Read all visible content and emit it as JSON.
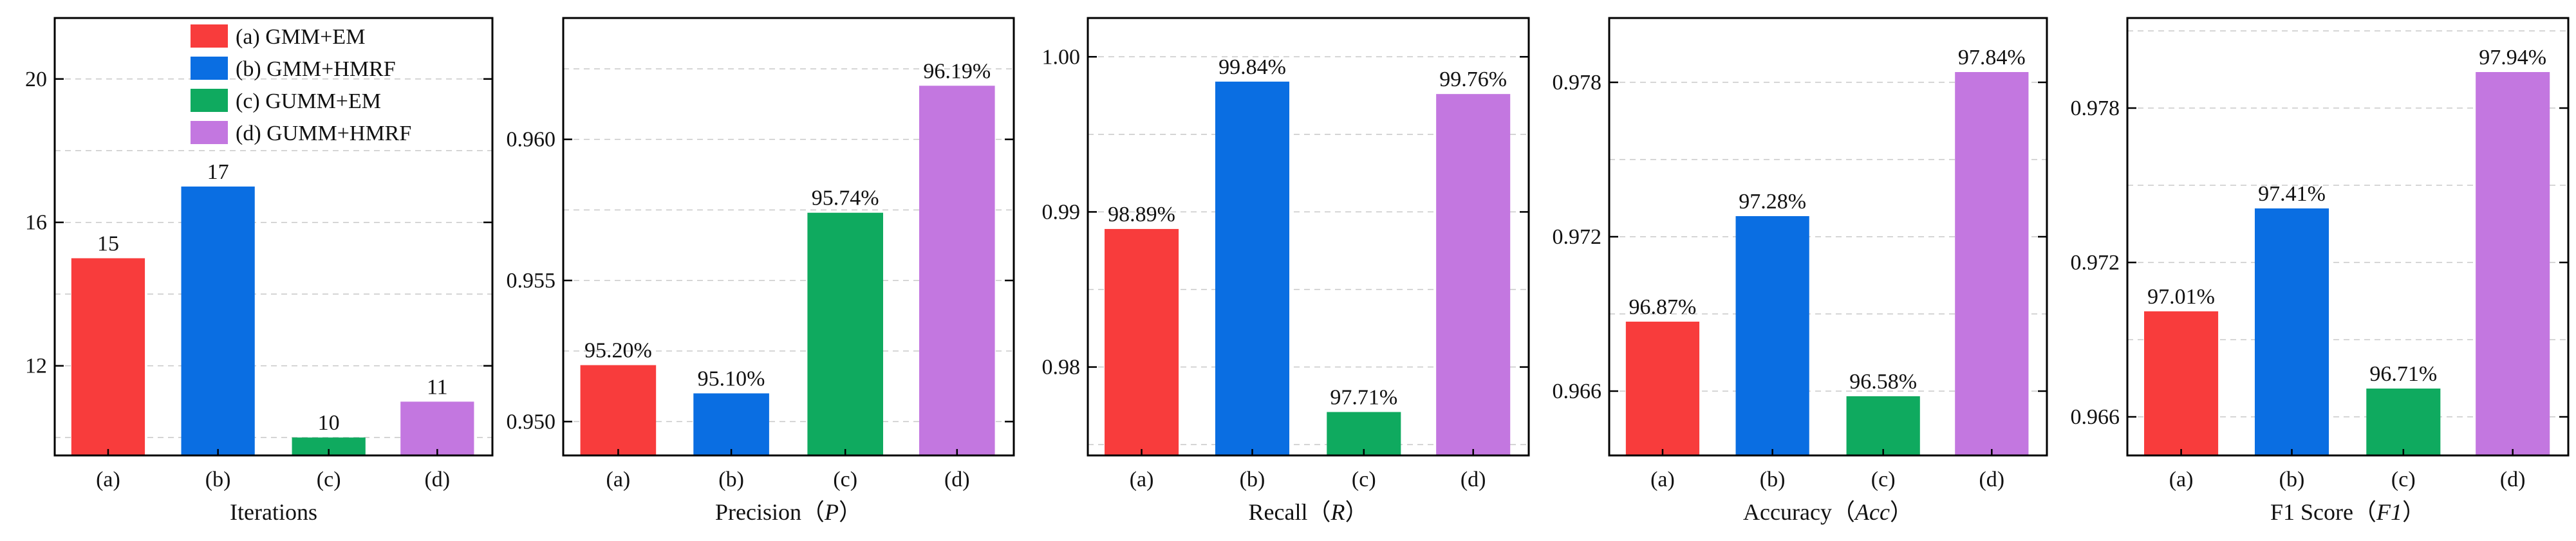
{
  "colors": {
    "a": "#f83c3c",
    "b": "#0a6ee2",
    "c": "#0faa5f",
    "d": "#c377e0"
  },
  "legend": [
    {
      "key": "a",
      "label": "(a) GMM+EM"
    },
    {
      "key": "b",
      "label": "(b) GMM+HMRF"
    },
    {
      "key": "c",
      "label": "(c) GUMM+EM"
    },
    {
      "key": "d",
      "label": "(d) GUMM+HMRF"
    }
  ],
  "chart_data": [
    {
      "type": "bar",
      "xlabel": "Iterations",
      "categories": [
        "(a)",
        "(b)",
        "(c)",
        "(d)"
      ],
      "values": [
        15,
        17,
        10,
        11
      ],
      "value_labels": [
        "15",
        "17",
        "10",
        "11"
      ],
      "ylim": [
        9.5,
        21.7
      ],
      "yticks": [
        12,
        16,
        20
      ],
      "ytick_labels": [
        "12",
        "16",
        "20"
      ],
      "ygrid": [
        10,
        12,
        14,
        16,
        18,
        20
      ],
      "has_legend": true,
      "legend_position": "top-right",
      "grid": true
    },
    {
      "type": "bar",
      "xlabel": "Precision",
      "xlabel_symbol": "P",
      "categories": [
        "(a)",
        "(b)",
        "(c)",
        "(d)"
      ],
      "values": [
        0.952,
        0.951,
        0.9574,
        0.9619
      ],
      "value_labels": [
        "95.20%",
        "95.10%",
        "95.74%",
        "96.19%"
      ],
      "ylim": [
        0.9488,
        0.9643
      ],
      "yticks": [
        0.95,
        0.955,
        0.96
      ],
      "ytick_labels": [
        "0.950",
        "0.955",
        "0.960"
      ],
      "ygrid": [
        0.95,
        0.9525,
        0.955,
        0.9575,
        0.96,
        0.9625
      ],
      "grid": true
    },
    {
      "type": "bar",
      "xlabel": "Recall",
      "xlabel_symbol": "R",
      "categories": [
        "(a)",
        "(b)",
        "(c)",
        "(d)"
      ],
      "values": [
        0.9889,
        0.9984,
        0.9771,
        0.9976
      ],
      "value_labels": [
        "98.89%",
        "99.84%",
        "97.71%",
        "99.76%"
      ],
      "ylim": [
        0.9743,
        1.0025
      ],
      "yticks": [
        0.98,
        0.99,
        1.0
      ],
      "ytick_labels": [
        "0.98",
        "0.99",
        "1.00"
      ],
      "ygrid": [
        0.975,
        0.98,
        0.985,
        0.99,
        0.995,
        1.0
      ],
      "grid": true
    },
    {
      "type": "bar",
      "xlabel": "Accuracy",
      "xlabel_symbol": "Acc",
      "categories": [
        "(a)",
        "(b)",
        "(c)",
        "(d)"
      ],
      "values": [
        0.9687,
        0.9728,
        0.9658,
        0.9784
      ],
      "value_labels": [
        "96.87%",
        "97.28%",
        "96.58%",
        "97.84%"
      ],
      "ylim": [
        0.9635,
        0.9805
      ],
      "yticks": [
        0.966,
        0.972,
        0.978
      ],
      "ytick_labels": [
        "0.966",
        "0.972",
        "0.978"
      ],
      "ygrid": [
        0.966,
        0.969,
        0.972,
        0.975,
        0.978
      ],
      "grid": true
    },
    {
      "type": "bar",
      "xlabel": "F1 Score",
      "xlabel_symbol": "F1",
      "categories": [
        "(a)",
        "(b)",
        "(c)",
        "(d)"
      ],
      "values": [
        0.9701,
        0.9741,
        0.9671,
        0.9794
      ],
      "value_labels": [
        "97.01%",
        "97.41%",
        "96.71%",
        "97.94%"
      ],
      "ylim": [
        0.9645,
        0.9815
      ],
      "yticks": [
        0.966,
        0.972,
        0.978
      ],
      "ytick_labels": [
        "0.966",
        "0.972",
        "0.978"
      ],
      "ygrid": [
        0.966,
        0.969,
        0.972,
        0.975,
        0.978,
        0.981
      ],
      "grid": true
    }
  ]
}
